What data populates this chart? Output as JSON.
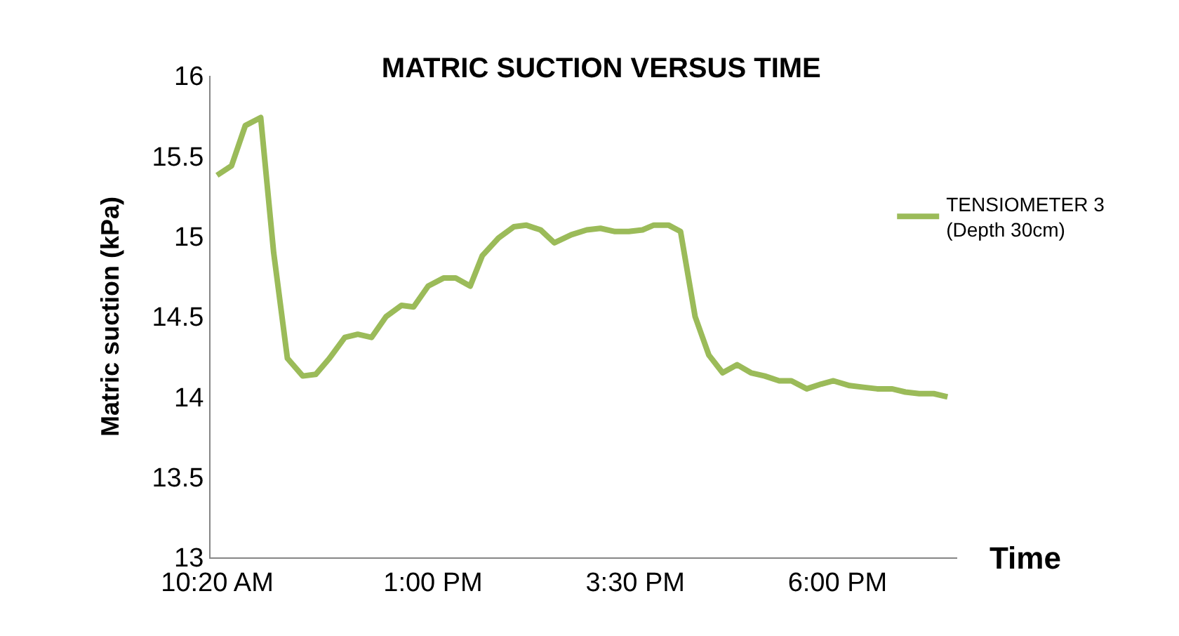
{
  "chart_data": {
    "type": "line",
    "title": "MATRIC SUCTION VERSUS TIME",
    "xlabel": "Time",
    "ylabel": "Matric suction (kPa)",
    "xlim": [
      10.25,
      19.48
    ],
    "xticks": [
      {
        "value": 10.333,
        "label": "10:20 AM"
      },
      {
        "value": 13,
        "label": "1:00 PM"
      },
      {
        "value": 15.5,
        "label": "3:30 PM"
      },
      {
        "value": 18,
        "label": "6:00 PM"
      }
    ],
    "ylim": [
      13,
      16
    ],
    "yticks": [
      13,
      13.5,
      14,
      14.5,
      15,
      15.5,
      16
    ],
    "x": [
      10.33,
      10.51,
      10.68,
      10.87,
      11.03,
      11.2,
      11.39,
      11.55,
      11.72,
      11.91,
      12.07,
      12.24,
      12.42,
      12.61,
      12.76,
      12.94,
      13.13,
      13.28,
      13.46,
      13.61,
      13.81,
      14.0,
      14.15,
      14.33,
      14.5,
      14.71,
      14.9,
      15.07,
      15.25,
      15.42,
      15.59,
      15.73,
      15.91,
      16.06,
      16.24,
      16.41,
      16.58,
      16.76,
      16.93,
      17.1,
      17.28,
      17.43,
      17.62,
      17.8,
      17.95,
      18.15,
      18.32,
      18.49,
      18.67,
      18.84,
      19.01,
      19.19,
      19.36
    ],
    "series": [
      {
        "name": "TENSIOMETER 3 (Depth 30cm)",
        "color": "#9bbb59",
        "values": [
          15.38,
          15.44,
          15.69,
          15.74,
          14.9,
          14.24,
          14.13,
          14.14,
          14.24,
          14.37,
          14.39,
          14.37,
          14.5,
          14.57,
          14.56,
          14.69,
          14.74,
          14.74,
          14.69,
          14.88,
          14.99,
          15.06,
          15.07,
          15.04,
          14.96,
          15.01,
          15.04,
          15.05,
          15.03,
          15.03,
          15.04,
          15.07,
          15.07,
          15.03,
          14.5,
          14.26,
          14.15,
          14.2,
          14.15,
          14.13,
          14.1,
          14.1,
          14.05,
          14.08,
          14.1,
          14.07,
          14.06,
          14.05,
          14.05,
          14.03,
          14.02,
          14.02,
          14.0
        ]
      }
    ],
    "legend": "right",
    "marker": "none",
    "line_style": "solid"
  }
}
